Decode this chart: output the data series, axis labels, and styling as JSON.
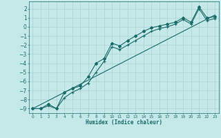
{
  "title": "",
  "xlabel": "Humidex (Indice chaleur)",
  "ylabel": "",
  "bg_color": "#c5e8e8",
  "grid_color": "#afd4d4",
  "line_color": "#1a6b6b",
  "xlim": [
    -0.5,
    23.5
  ],
  "ylim": [
    -9.5,
    2.8
  ],
  "yticks": [
    2,
    1,
    0,
    -1,
    -2,
    -3,
    -4,
    -5,
    -6,
    -7,
    -8,
    -9
  ],
  "xticks": [
    0,
    1,
    2,
    3,
    4,
    5,
    6,
    7,
    8,
    9,
    10,
    11,
    12,
    13,
    14,
    15,
    16,
    17,
    18,
    19,
    20,
    21,
    22,
    23
  ],
  "series1_x": [
    0,
    1,
    2,
    3,
    4,
    5,
    6,
    7,
    8,
    9,
    10,
    11,
    12,
    13,
    14,
    15,
    16,
    17,
    18,
    19,
    20,
    21,
    22,
    23
  ],
  "series1_y": [
    -9.0,
    -9.0,
    -8.5,
    -9.0,
    -7.2,
    -6.8,
    -6.5,
    -5.5,
    -4.0,
    -3.5,
    -1.8,
    -2.1,
    -1.5,
    -1.0,
    -0.5,
    -0.1,
    0.1,
    0.3,
    0.5,
    1.0,
    0.5,
    2.2,
    1.0,
    1.1
  ],
  "series2_x": [
    0,
    1,
    2,
    3,
    4,
    5,
    6,
    7,
    8,
    9,
    10,
    11,
    12,
    13,
    14,
    15,
    16,
    17,
    18,
    19,
    20,
    21,
    22,
    23
  ],
  "series2_y": [
    -9.0,
    -9.0,
    -8.7,
    -9.0,
    -7.8,
    -7.2,
    -6.8,
    -6.2,
    -5.0,
    -3.8,
    -2.2,
    -2.5,
    -2.0,
    -1.5,
    -1.0,
    -0.5,
    -0.2,
    0.0,
    0.3,
    0.8,
    0.3,
    2.0,
    0.7,
    0.9
  ],
  "series3_x": [
    0,
    23
  ],
  "series3_y": [
    -9.0,
    1.3
  ]
}
